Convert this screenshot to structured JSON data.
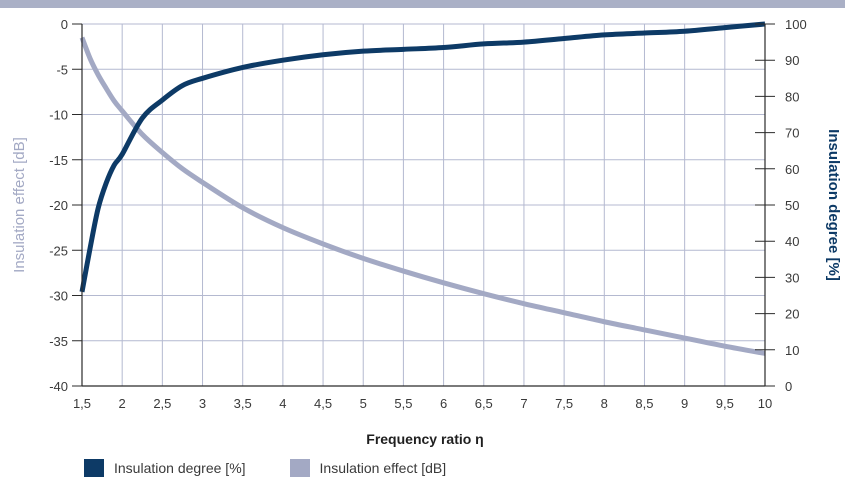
{
  "colors": {
    "header_band": "#aab0c6",
    "degree_series": "#0d3a66",
    "effect_series": "#a3a9c4",
    "grid": "#b4b9d0",
    "axis": "#2b2b2b",
    "text": "#3a3a3a"
  },
  "chart_data": {
    "type": "line",
    "xlabel": "Frequency ratio η",
    "ylabel_left": "Insulation effect [dB]",
    "ylabel_right": "Insulation degree [%]",
    "xlim": [
      1.5,
      10
    ],
    "ylim_left": [
      -40,
      0
    ],
    "ylim_right": [
      0,
      100
    ],
    "x_ticks": [
      "1,5",
      "2",
      "2,5",
      "3",
      "3,5",
      "4",
      "4,5",
      "5",
      "5,5",
      "6",
      "6,5",
      "7",
      "7,5",
      "8",
      "8,5",
      "9",
      "9,5",
      "10"
    ],
    "y_left_ticks": [
      "0",
      "-5",
      "-10",
      "-15",
      "-20",
      "-25",
      "-30",
      "-35",
      "-40"
    ],
    "y_right_ticks": [
      "100",
      "90",
      "80",
      "70",
      "60",
      "50",
      "40",
      "30",
      "20",
      "10",
      "0"
    ],
    "grid": true,
    "legend_position": "bottom-left",
    "series": [
      {
        "name": "Insulation degree [%]",
        "axis": "right",
        "x": [
          1.5,
          1.6,
          1.7,
          1.8,
          1.9,
          2,
          2.25,
          2.5,
          2.75,
          3,
          3.5,
          4,
          4.5,
          5,
          5.5,
          6,
          6.5,
          7,
          7.5,
          8,
          8.5,
          9,
          9.5,
          10
        ],
        "y": [
          26,
          38,
          49,
          56,
          61,
          64,
          74,
          79,
          83,
          85,
          88,
          90,
          91.5,
          92.5,
          93,
          93.5,
          94.5,
          95,
          96,
          97,
          97.5,
          98,
          99,
          100
        ]
      },
      {
        "name": "Insulation effect [dB]",
        "axis": "left",
        "x": [
          1.5,
          1.6,
          1.7,
          1.8,
          1.9,
          2,
          2.25,
          2.5,
          2.75,
          3,
          3.5,
          4,
          4.5,
          5,
          5.5,
          6,
          6.5,
          7,
          7.5,
          8,
          8.5,
          9,
          9.5,
          10
        ],
        "y": [
          -1.5,
          -3.8,
          -5.6,
          -7.1,
          -8.5,
          -9.6,
          -12.2,
          -14.2,
          -16,
          -17.5,
          -20.3,
          -22.5,
          -24.3,
          -25.9,
          -27.3,
          -28.6,
          -29.8,
          -30.9,
          -31.9,
          -32.9,
          -33.8,
          -34.7,
          -35.6,
          -36.4
        ]
      }
    ]
  }
}
